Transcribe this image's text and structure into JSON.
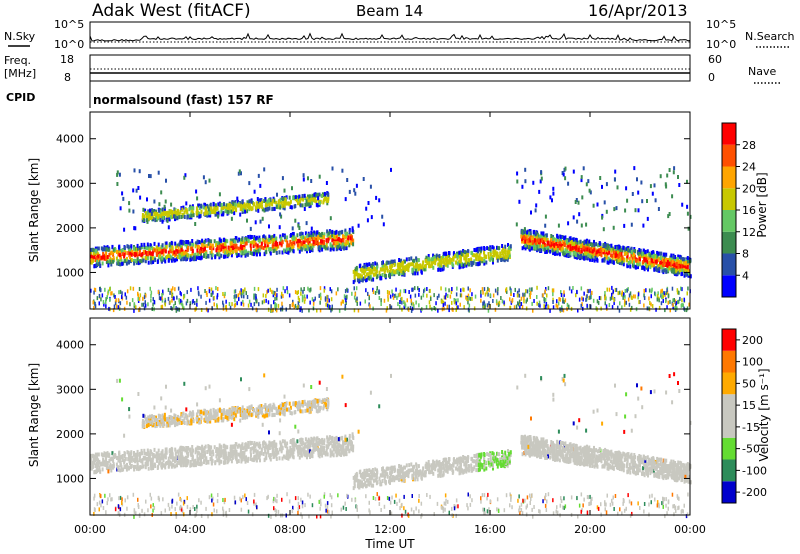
{
  "header": {
    "station": "Adak West (fitACF)",
    "beam": "Beam 14",
    "date": "16/Apr/2013"
  },
  "panels": {
    "nsky": {
      "left_label": "N.Sky",
      "right_label": "N.Search",
      "left_top": "10^5",
      "left_bottom": "10^0",
      "right_top": "10^5",
      "right_bottom": "10^0"
    },
    "freq": {
      "left_label_1": "Freq.",
      "left_label_2": "[MHz]",
      "left_top": "18",
      "left_bottom": "8",
      "right_label": "Nave",
      "right_top": "60",
      "right_bottom": "0"
    },
    "cpid": {
      "label": "CPID",
      "text": "normalsound (fast) 157 RF"
    }
  },
  "colors": {
    "power_scale": [
      "#0000ff",
      "#2850a8",
      "#3c8c50",
      "#64c864",
      "#c8c800",
      "#ffa500",
      "#ff5000",
      "#ff0000"
    ],
    "velocity_scale": [
      "#ff0000",
      "#ff7800",
      "#ffaa00",
      "#c8c8c0",
      "#c8c8c0",
      "#64dc32",
      "#2d8c5a",
      "#0000cc"
    ],
    "ground_scatter": "#c8c8c0"
  },
  "chart_data": [
    {
      "type": "heatmap",
      "quantity": "power",
      "xlabel": "",
      "ylabel": "Slant Range [km]",
      "x_unit": "hours UT",
      "xlim": [
        0,
        24
      ],
      "ylim": [
        180,
        4600
      ],
      "y_ticks": [
        "1000",
        "2000",
        "3000",
        "4000"
      ],
      "colorbar": {
        "label": "Power [dB]",
        "ticks": [
          "4",
          "8",
          "12",
          "16",
          "20",
          "24",
          "28"
        ]
      },
      "scatter_regions": [
        {
          "x": [
            0,
            10.5
          ],
          "y_center": [
            1380,
            1800
          ],
          "kind": "main_band"
        },
        {
          "x": [
            2,
            9.5
          ],
          "y_center": [
            2300,
            2700
          ],
          "kind": "upper_band"
        },
        {
          "x": [
            10.5,
            16.8
          ],
          "y_center": [
            1000,
            1500
          ],
          "kind": "trough_band"
        },
        {
          "x": [
            17.2,
            24
          ],
          "y_center": [
            1800,
            1150
          ],
          "kind": "main_band"
        }
      ]
    },
    {
      "type": "heatmap",
      "quantity": "velocity",
      "xlabel": "Time UT",
      "ylabel": "Slant Range [km]",
      "x_ticks": [
        "00:00",
        "04:00",
        "08:00",
        "12:00",
        "16:00",
        "20:00",
        "00:00"
      ],
      "y_ticks": [
        "1000",
        "2000",
        "3000",
        "4000"
      ],
      "colorbar": {
        "label": "Velocity [m s⁻¹]",
        "ticks": [
          "200",
          "100",
          "50",
          "15",
          "-15",
          "-50",
          "-100",
          "-200"
        ]
      }
    }
  ]
}
